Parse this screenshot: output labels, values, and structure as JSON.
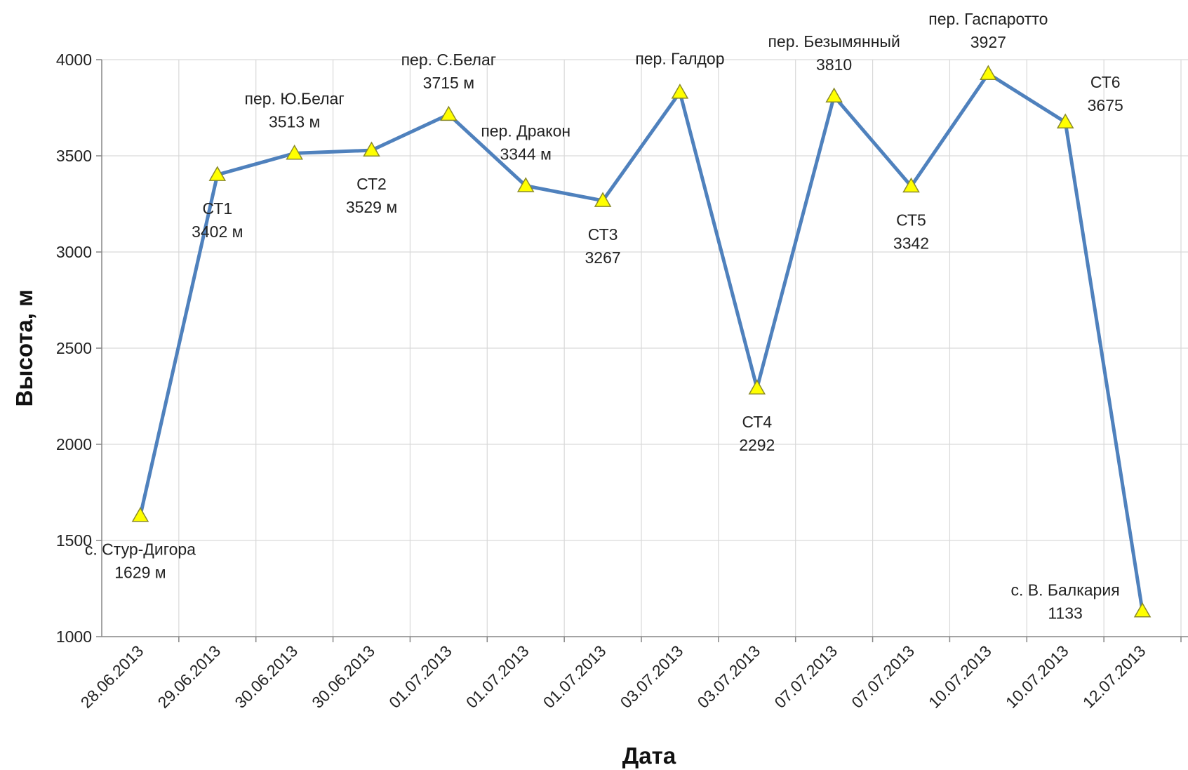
{
  "chart_data": {
    "type": "line",
    "xlabel": "Дата",
    "ylabel": "Высота, м",
    "ylim": [
      1000,
      4000
    ],
    "yticks": [
      "1000",
      "1500",
      "2000",
      "2500",
      "3000",
      "3500",
      "4000"
    ],
    "grid": true,
    "legend": "none",
    "colors": {
      "line": "#4f81bd",
      "marker": "#ffff00",
      "grid": "#d9d9d9"
    },
    "x": [
      "28.06.2013",
      "29.06.2013",
      "30.06.2013",
      "30.06.2013",
      "01.07.2013",
      "01.07.2013",
      "01.07.2013",
      "03.07.2013",
      "03.07.2013",
      "07.07.2013",
      "07.07.2013",
      "10.07.2013",
      "10.07.2013",
      "12.07.2013"
    ],
    "values": [
      1629,
      3402,
      3513,
      3529,
      3715,
      3344,
      3267,
      3830,
      2292,
      3810,
      3342,
      3927,
      3675,
      1133
    ],
    "annotations": [
      {
        "name": "с. Стур-Дигора",
        "value": "1629 м",
        "pos": "below"
      },
      {
        "name": "СТ1",
        "value": "3402 м",
        "pos": "below"
      },
      {
        "name": "пер. Ю.Белаг",
        "value": "3513 м",
        "pos": "above"
      },
      {
        "name": "СТ2",
        "value": "3529 м",
        "pos": "below"
      },
      {
        "name": "пер. С.Белаг",
        "value": "3715 м",
        "pos": "above"
      },
      {
        "name": "пер. Дракон",
        "value": "3344 м",
        "pos": "above"
      },
      {
        "name": "СТ3",
        "value": "3267",
        "pos": "below"
      },
      {
        "name": "пер. Галдор",
        "value": "",
        "pos": "above"
      },
      {
        "name": "СТ4",
        "value": "2292",
        "pos": "below"
      },
      {
        "name": "пер. Безымянный",
        "value": "3810",
        "pos": "above"
      },
      {
        "name": "СТ5",
        "value": "3342",
        "pos": "below"
      },
      {
        "name": "пер. Гаспаротто",
        "value": "3927",
        "pos": "above"
      },
      {
        "name": "СТ6",
        "value": "3675",
        "pos": "right"
      },
      {
        "name": "с. В. Балкария",
        "value": "1133",
        "pos": "left"
      }
    ]
  }
}
